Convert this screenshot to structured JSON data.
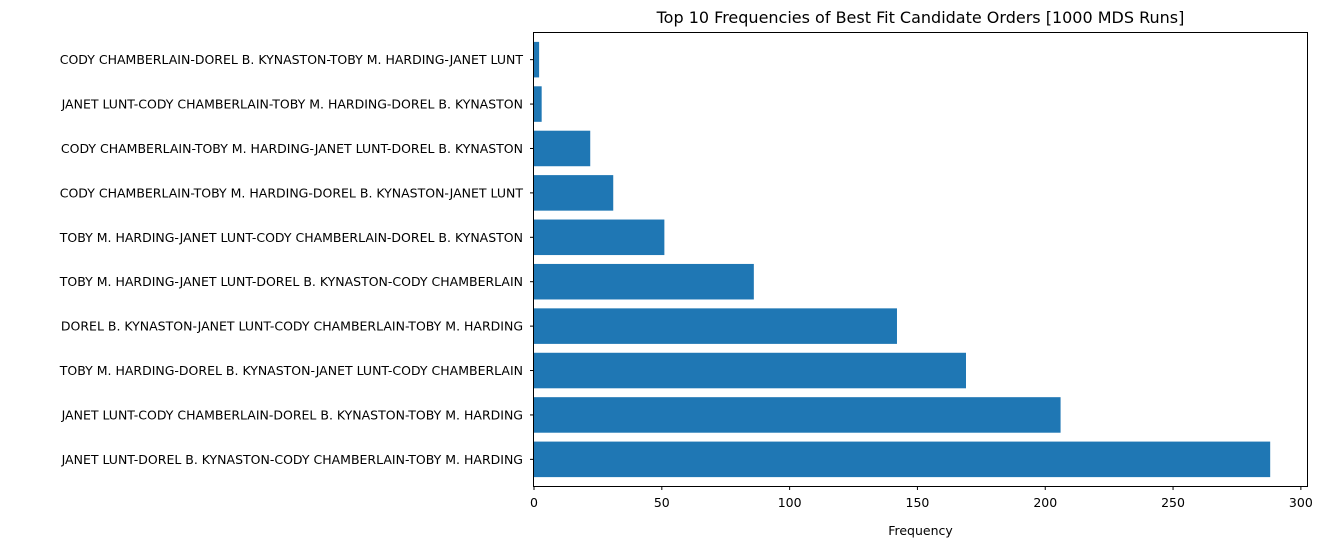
{
  "chart_data": {
    "type": "bar",
    "orientation": "horizontal",
    "title": "Top 10 Frequencies of Best Fit Candidate Orders [1000 MDS Runs]",
    "xlabel": "Frequency",
    "ylabel": "",
    "categories": [
      "JANET LUNT-DOREL B. KYNASTON-CODY CHAMBERLAIN-TOBY M. HARDING",
      "JANET LUNT-CODY CHAMBERLAIN-DOREL B. KYNASTON-TOBY M. HARDING",
      "TOBY M. HARDING-DOREL B. KYNASTON-JANET LUNT-CODY CHAMBERLAIN",
      "DOREL B. KYNASTON-JANET LUNT-CODY CHAMBERLAIN-TOBY M. HARDING",
      "TOBY M. HARDING-JANET LUNT-DOREL B. KYNASTON-CODY CHAMBERLAIN",
      "TOBY M. HARDING-JANET LUNT-CODY CHAMBERLAIN-DOREL B. KYNASTON",
      "CODY CHAMBERLAIN-TOBY M. HARDING-DOREL B. KYNASTON-JANET LUNT",
      "CODY CHAMBERLAIN-TOBY M. HARDING-JANET LUNT-DOREL B. KYNASTON",
      "JANET LUNT-CODY CHAMBERLAIN-TOBY M. HARDING-DOREL B. KYNASTON",
      "CODY CHAMBERLAIN-DOREL B. KYNASTON-TOBY M. HARDING-JANET LUNT"
    ],
    "values": [
      288,
      206,
      169,
      142,
      86,
      51,
      31,
      22,
      3,
      2
    ],
    "xlim": [
      0,
      302.4
    ],
    "xticks": [
      0,
      50,
      100,
      150,
      200,
      250,
      300
    ],
    "grid": false,
    "legend": "none",
    "bar_color": "#1f77b4"
  }
}
